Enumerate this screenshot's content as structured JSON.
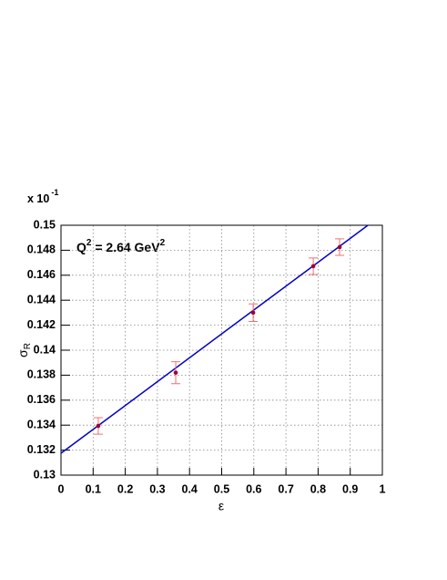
{
  "chart_data": {
    "type": "scatter",
    "axis_multiplier": "x 10",
    "axis_multiplier_exp": "-1",
    "annotation": [
      "Q",
      "2",
      " = 2.64 GeV",
      "2"
    ],
    "x_label": "ε",
    "y_label": [
      "σ",
      "R"
    ],
    "points": {
      "x": [
        0.116,
        0.357,
        0.598,
        0.785,
        0.867
      ],
      "values": [
        0.13394,
        0.1382,
        0.143,
        0.14672,
        0.14825
      ],
      "errors": [
        0.00066,
        0.00088,
        0.0007,
        0.00066,
        0.00066
      ],
      "color": "#a00030",
      "error_color": "#f07070"
    },
    "fit": {
      "x": [
        0,
        0.955
      ],
      "values": [
        0.13175,
        0.15
      ],
      "color": "#0000cc"
    },
    "xlim": [
      0,
      1
    ],
    "ylim": [
      0.13,
      0.15
    ],
    "xticks": [
      0,
      0.1,
      0.2,
      0.3,
      0.4,
      0.5,
      0.6,
      0.7,
      0.8,
      0.9,
      1
    ],
    "yticks": [
      0.13,
      0.132,
      0.134,
      0.136,
      0.138,
      0.14,
      0.142,
      0.144,
      0.146,
      0.148,
      0.15
    ],
    "grid": true
  }
}
